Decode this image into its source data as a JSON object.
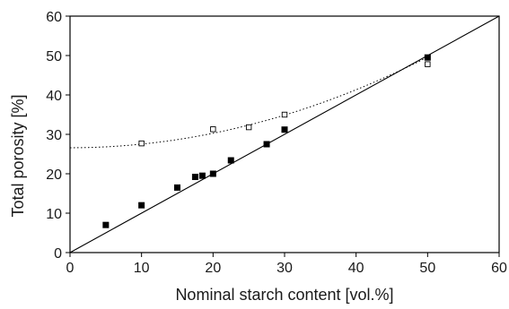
{
  "chart_data": {
    "type": "scatter",
    "title": "",
    "xlabel": "Nominal starch content [vol.%]",
    "ylabel": "Total porosity [%]",
    "xlim": [
      0,
      60
    ],
    "ylim": [
      0,
      60
    ],
    "xticks": [
      "0",
      "10",
      "20",
      "30",
      "40",
      "50",
      "60"
    ],
    "yticks": [
      "0",
      "10",
      "20",
      "30",
      "40",
      "50",
      "60"
    ],
    "grid": false,
    "legend": "none",
    "series": [
      {
        "marker": "filled-square",
        "color": "#000000",
        "x": [
          5,
          10,
          15,
          17.5,
          18.5,
          20,
          22.5,
          27.5,
          30,
          50
        ],
        "y": [
          7,
          12,
          16.5,
          19.2,
          19.5,
          20,
          23.4,
          27.5,
          31.2,
          49.5
        ]
      },
      {
        "marker": "open-square",
        "color": "#000000",
        "x": [
          10,
          20,
          25,
          30,
          50
        ],
        "y": [
          27.7,
          31.3,
          31.8,
          35,
          47.8
        ]
      }
    ],
    "reference_line": {
      "style": "solid",
      "x": [
        0,
        60
      ],
      "y": [
        0,
        60
      ]
    },
    "trend_curve": {
      "style": "dotted",
      "fit": "quadratic",
      "coefficients": [
        26.6,
        0.0,
        0.0092
      ],
      "x_range": [
        0,
        50
      ]
    }
  }
}
